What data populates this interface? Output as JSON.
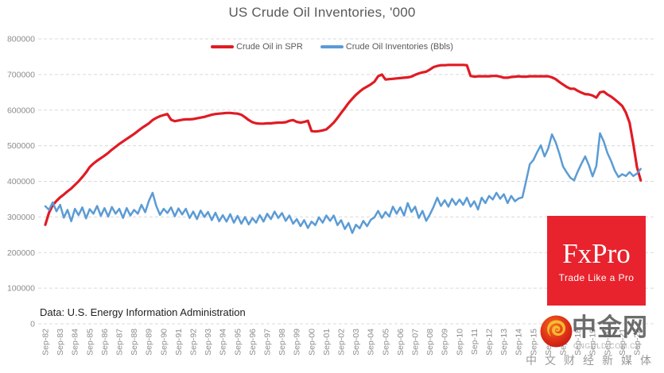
{
  "chart_data": {
    "type": "line",
    "title": "US Crude Oil Inventories, '000",
    "xlabel": "",
    "ylabel": "",
    "ylim": [
      0,
      800000
    ],
    "y_ticks": [
      0,
      100000,
      200000,
      300000,
      400000,
      500000,
      600000,
      700000,
      800000
    ],
    "x_ticks": [
      "Sep-82",
      "Sep-83",
      "Sep-84",
      "Sep-85",
      "Sep-86",
      "Sep-87",
      "Sep-88",
      "Sep-89",
      "Sep-90",
      "Sep-91",
      "Sep-92",
      "Sep-93",
      "Sep-94",
      "Sep-95",
      "Sep-96",
      "Sep-97",
      "Sep-98",
      "Sep-99",
      "Sep-00",
      "Sep-01",
      "Sep-02",
      "Sep-03",
      "Sep-04",
      "Sep-05",
      "Sep-06",
      "Sep-07",
      "Sep-08",
      "Sep-09",
      "Sep-10",
      "Sep-11",
      "Sep-12",
      "Sep-13",
      "Sep-14",
      "Sep-15",
      "Sep-16",
      "Sep-17",
      "Sep-18",
      "Sep-19",
      "Sep-20",
      "Sep-21",
      "Sep-22"
    ],
    "grid": "horizontal-dashed",
    "legend_position": "top-center",
    "x_start_year": 1982.75,
    "x_step_years": 0.25,
    "value_multiplier": 1000,
    "series": [
      {
        "name": "Crude Oil in SPR",
        "color": "#e01b24",
        "values": [
          278,
          312,
          333,
          345,
          355,
          363,
          372,
          380,
          390,
          400,
          412,
          425,
          440,
          450,
          458,
          465,
          472,
          480,
          489,
          497,
          505,
          512,
          519,
          526,
          533,
          541,
          549,
          556,
          563,
          572,
          578,
          583,
          586,
          589,
          573,
          569,
          571,
          573,
          574,
          574,
          575,
          577,
          579,
          581,
          584,
          587,
          589,
          590,
          591,
          592,
          592,
          591,
          590,
          587,
          580,
          572,
          566,
          563,
          562,
          562,
          563,
          563,
          564,
          565,
          565,
          566,
          570,
          572,
          567,
          565,
          567,
          570,
          541,
          540,
          541,
          543,
          546,
          555,
          565,
          578,
          592,
          606,
          620,
          632,
          643,
          652,
          660,
          666,
          672,
          680,
          695,
          700,
          686,
          687,
          688,
          689,
          690,
          691,
          692,
          694,
          699,
          703,
          706,
          708,
          714,
          721,
          724,
          726,
          726,
          727,
          727,
          727,
          727,
          727,
          726,
          696,
          694,
          695,
          695,
          695,
          695,
          696,
          696,
          694,
          691,
          691,
          693,
          694,
          695,
          694,
          694,
          695,
          695,
          695,
          695,
          695,
          695,
          692,
          687,
          679,
          672,
          665,
          660,
          660,
          654,
          649,
          645,
          644,
          641,
          635,
          650,
          652,
          644,
          638,
          630,
          621,
          612,
          593,
          565,
          505,
          440,
          403
        ]
      },
      {
        "name": "Crude Oil Inventories (Bbls)",
        "color": "#5b9bd5",
        "values": [
          330,
          320,
          341,
          316,
          334,
          298,
          320,
          288,
          323,
          305,
          327,
          296,
          322,
          309,
          331,
          303,
          325,
          301,
          328,
          309,
          323,
          297,
          325,
          304,
          320,
          309,
          334,
          313,
          345,
          368,
          331,
          306,
          323,
          311,
          327,
          302,
          324,
          307,
          323,
          297,
          315,
          294,
          318,
          300,
          314,
          291,
          312,
          288,
          305,
          287,
          308,
          284,
          303,
          281,
          300,
          279,
          297,
          284,
          305,
          287,
          309,
          294,
          315,
          297,
          311,
          289,
          304,
          281,
          294,
          274,
          291,
          269,
          287,
          277,
          299,
          284,
          304,
          289,
          304,
          277,
          291,
          266,
          283,
          255,
          278,
          268,
          289,
          274,
          292,
          299,
          317,
          297,
          314,
          301,
          329,
          309,
          327,
          304,
          339,
          314,
          329,
          297,
          317,
          289,
          307,
          329,
          354,
          331,
          347,
          329,
          351,
          334,
          349,
          334,
          354,
          329,
          344,
          321,
          354,
          339,
          359,
          349,
          368,
          351,
          364,
          339,
          359,
          344,
          352,
          355,
          400,
          448,
          460,
          482,
          501,
          470,
          492,
          532,
          510,
          478,
          442,
          425,
          410,
          403,
          428,
          450,
          470,
          445,
          414,
          443,
          535,
          512,
          480,
          457,
          430,
          412,
          420,
          415,
          426,
          415,
          422,
          435
        ]
      }
    ],
    "source_note": "Data: U.S. Energy Information Administration"
  },
  "branding": {
    "fxpro": {
      "wordmark": "FxPro",
      "tagline": "Trade Like a Pro",
      "bg_color": "#e8232e"
    },
    "watermark": {
      "site_name": "中金网",
      "domain": "CNGOLD.COM.CN",
      "slogan": "中文财经新媒体"
    }
  }
}
